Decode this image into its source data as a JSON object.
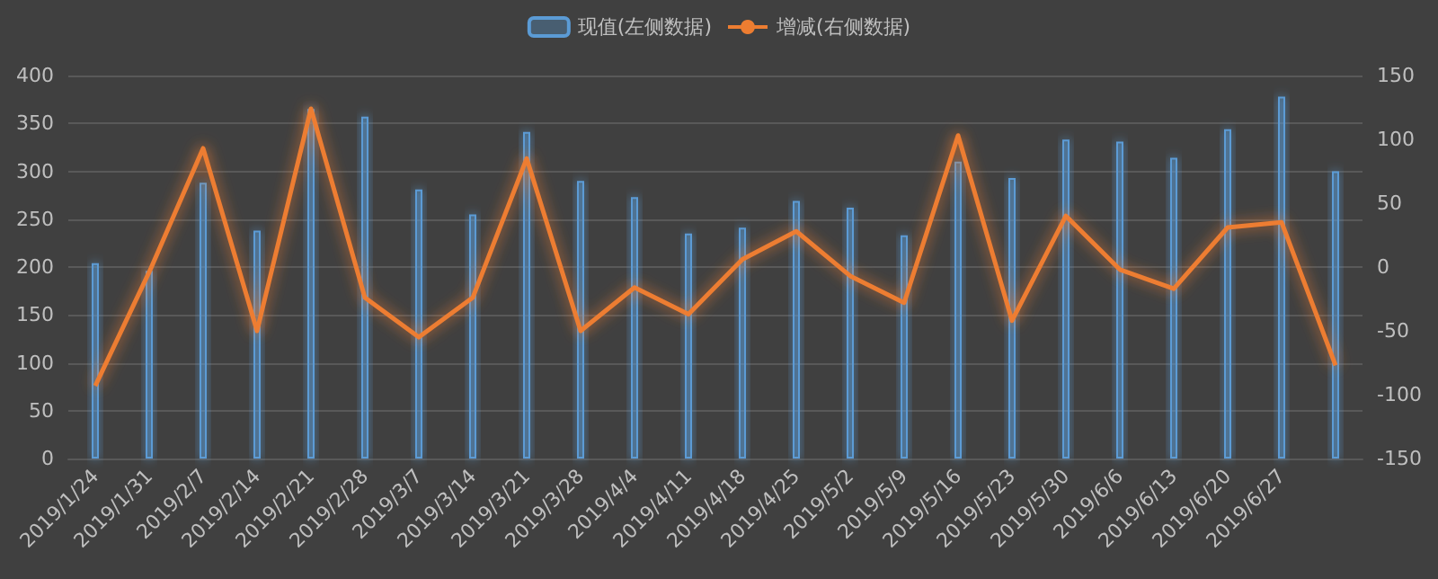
{
  "chart_data": {
    "type": "bar",
    "categories": [
      "2019/1/24",
      "2019/1/31",
      "2019/2/7",
      "2019/2/14",
      "2019/2/21",
      "2019/2/28",
      "2019/3/7",
      "2019/3/14",
      "2019/3/21",
      "2019/3/28",
      "2019/4/4",
      "2019/4/11",
      "2019/4/18",
      "2019/4/25",
      "2019/5/2",
      "2019/5/9",
      "2019/5/16",
      "2019/5/23",
      "2019/5/30",
      "2019/6/6",
      "2019/6/13",
      "2019/6/20",
      "2019/6/27",
      null
    ],
    "series": [
      {
        "name": "现值(左侧数据)",
        "color": "#5b9bd5",
        "values": [
          204,
          196,
          288,
          238,
          365,
          357,
          281,
          255,
          341,
          290,
          273,
          235,
          241,
          269,
          262,
          233,
          310,
          293,
          333,
          331,
          314,
          344,
          378,
          300
        ]
      },
      {
        "name": "增减(右侧数据)",
        "type": "line",
        "axis": "y2",
        "color": "#ed7d31",
        "values": [
          -93,
          -4,
          93,
          -50,
          124,
          -24,
          -55,
          -24,
          85,
          -50,
          -16,
          -37,
          6,
          28,
          -7,
          -28,
          103,
          -42,
          40,
          -2,
          -17,
          31,
          35,
          -77
        ]
      }
    ],
    "ylim": [
      0,
      400
    ],
    "yticks": [
      0,
      50,
      100,
      150,
      200,
      250,
      300,
      350,
      400
    ],
    "y2lim": [
      -150,
      150
    ],
    "y2ticks": [
      -150,
      -100,
      -50,
      0,
      50,
      100,
      150
    ],
    "grid": "y",
    "legend": "top",
    "marker": "none",
    "line_style": "solid"
  }
}
